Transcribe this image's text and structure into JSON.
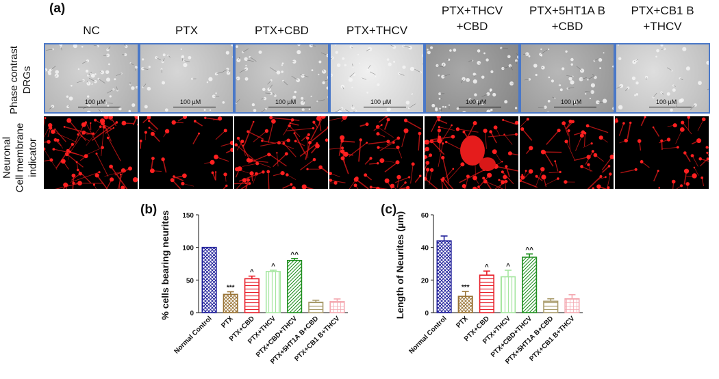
{
  "figure": {
    "label_a": "(a)",
    "columns": [
      "NC",
      "PTX",
      "PTX+CBD",
      "PTX+THCV",
      "PTX+THCV\n+CBD",
      "PTX+5HT1A B\n+CBD",
      "PTX+CB1 B\n+THCV"
    ],
    "row_labels": {
      "phase": [
        "Phase contrast",
        "DRGs"
      ],
      "fluor": [
        "Neuronal",
        "Cell membrane",
        "indicator"
      ]
    },
    "scale_label": "100 µM"
  },
  "colors": {
    "tile_border": "#4a78c8",
    "series": [
      "#1f1f9a",
      "#9a7436",
      "#e8202a",
      "#a6e6a0",
      "#1f8f1f",
      "#a89a6a",
      "#f4a8b0"
    ]
  },
  "chart_data": [
    {
      "type": "bar",
      "panel_label": "(b)",
      "ylabel": "% cells bearing neurites",
      "xlabel": "",
      "ylim": [
        0,
        150
      ],
      "yticks": [
        0,
        50,
        100,
        150
      ],
      "categories": [
        "Normal Control",
        "PTX",
        "PTX+CBD",
        "PTX+THCV",
        "PTX+CBD+THCV",
        "PTX+5HT1A B+CBD",
        "PTX+CB1 B+THCV"
      ],
      "values": [
        100,
        28,
        52,
        63,
        80,
        16,
        17
      ],
      "errors": [
        0,
        4,
        4,
        2,
        3,
        3,
        4
      ],
      "annotations": [
        "",
        "***",
        "^",
        "^",
        "^^",
        "",
        ""
      ],
      "patterns": [
        "crosshatch",
        "crosshatch",
        "horizontal",
        "vertical",
        "diagonal",
        "horizontal",
        "grid"
      ]
    },
    {
      "type": "bar",
      "panel_label": "(c)",
      "ylabel": "Length of Neurites (µm)",
      "xlabel": "",
      "ylim": [
        0,
        60
      ],
      "yticks": [
        0,
        20,
        40,
        60
      ],
      "categories": [
        "Normal Control",
        "PTX",
        "PTX+CBD",
        "PTX+THCV",
        "PTX+CBD+THCV",
        "PTX+5HT1A B+CBD",
        "PTX+CB1 B+THCV"
      ],
      "values": [
        44,
        10,
        23,
        22,
        34,
        7,
        8.5
      ],
      "errors": [
        3,
        3,
        2.5,
        4,
        2,
        1.5,
        2.5
      ],
      "annotations": [
        "",
        "***",
        "^",
        "^",
        "^^",
        "",
        ""
      ],
      "patterns": [
        "crosshatch",
        "crosshatch",
        "horizontal",
        "vertical",
        "diagonal",
        "horizontal",
        "grid"
      ]
    }
  ]
}
